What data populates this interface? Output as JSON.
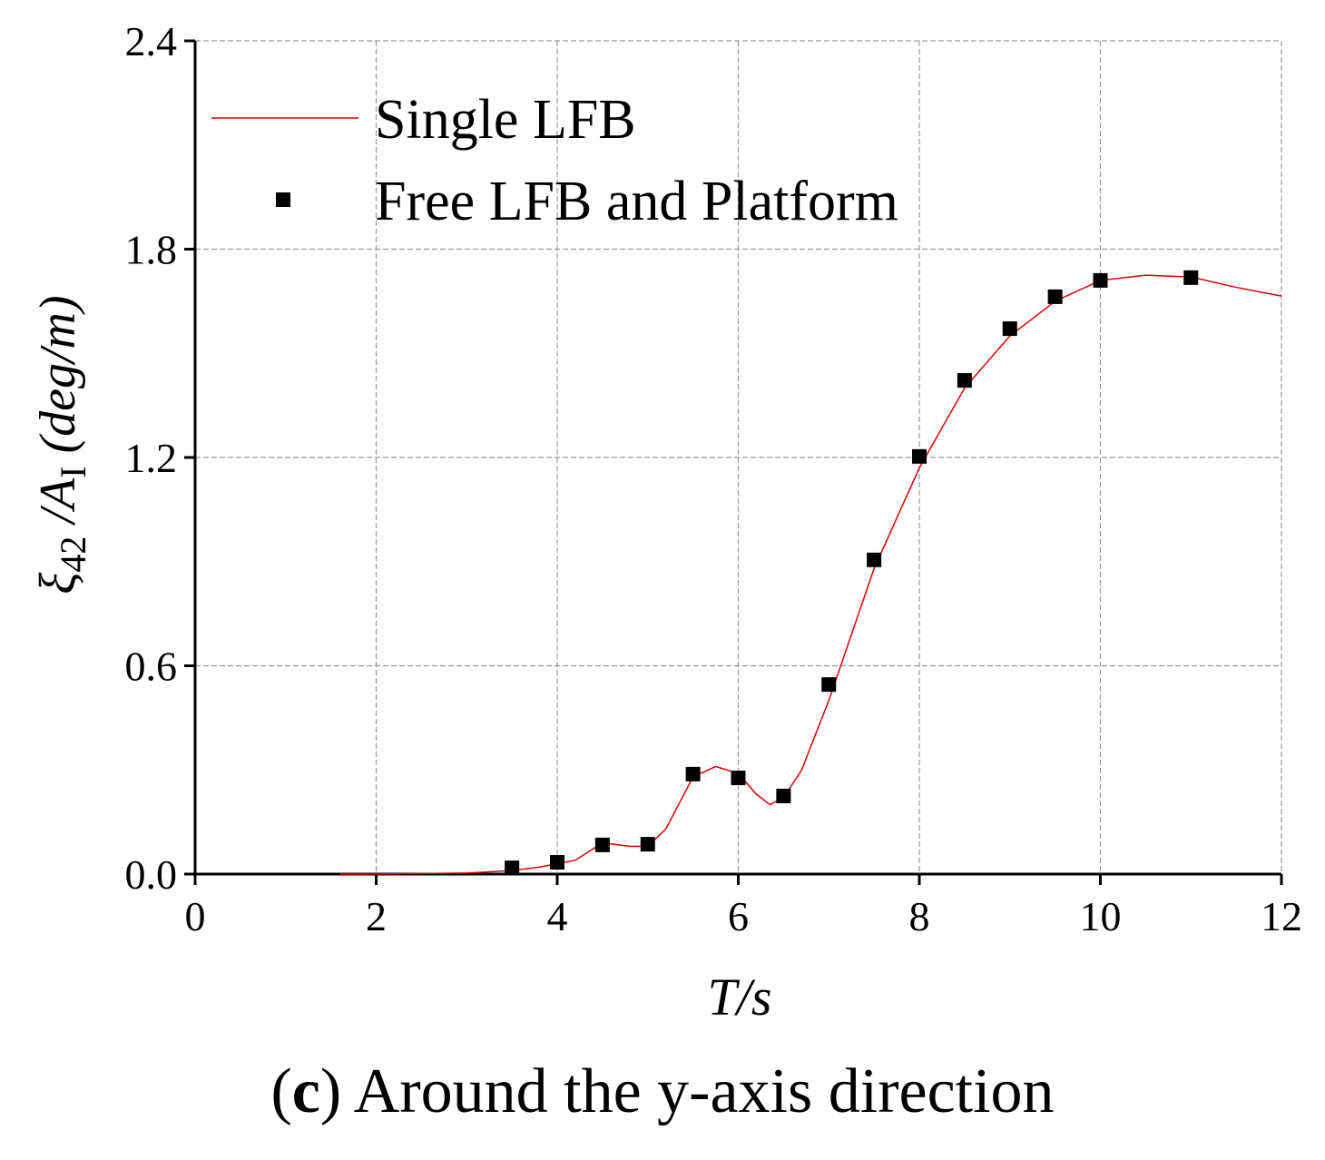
{
  "chart_data": {
    "type": "line",
    "x_label": "T/s",
    "y_label": {
      "symbol": "ξ",
      "sub": "42",
      "mid": " /A",
      "sub2": "I",
      "unit": "  (deg/m)"
    },
    "caption": [
      "(",
      "c",
      ") Around the y-axis direction"
    ],
    "xlim": [
      0,
      12
    ],
    "xticks": [
      0,
      2,
      4,
      6,
      8,
      10,
      12
    ],
    "ylim": [
      0,
      2.4
    ],
    "yticks": [
      {
        "value": 0,
        "label": "0.0"
      },
      0.6,
      1.2,
      1.8,
      2.4
    ],
    "grid": true,
    "legend": "top-left",
    "series": [
      {
        "name": "Single LFB",
        "type": "line",
        "color": "#e00000",
        "x": [
          1.6,
          2,
          3,
          3.5,
          3.8,
          4,
          4.2,
          4.5,
          4.8,
          5,
          5.2,
          5.5,
          5.75,
          6,
          6.2,
          6.35,
          6.5,
          6.7,
          7,
          7.5,
          8,
          8.5,
          9,
          9.5,
          10,
          10.5,
          11,
          11.5,
          12
        ],
        "values": [
          0,
          0,
          0.003,
          0.01,
          0.02,
          0.03,
          0.04,
          0.09,
          0.08,
          0.08,
          0.13,
          0.28,
          0.31,
          0.29,
          0.23,
          0.2,
          0.22,
          0.3,
          0.5,
          0.88,
          1.17,
          1.4,
          1.55,
          1.65,
          1.71,
          1.725,
          1.72,
          1.69,
          1.665
        ]
      },
      {
        "name": "Free LFB and Platform",
        "type": "scatter",
        "color": "#000000",
        "x": [
          3.5,
          4,
          4.5,
          5,
          5.5,
          6,
          6.5,
          7,
          7.5,
          8,
          8.5,
          9,
          9.5,
          10,
          11
        ],
        "values": [
          0.018,
          0.034,
          0.084,
          0.086,
          0.288,
          0.277,
          0.225,
          0.546,
          0.905,
          1.203,
          1.422,
          1.571,
          1.663,
          1.71,
          1.718
        ]
      }
    ]
  }
}
